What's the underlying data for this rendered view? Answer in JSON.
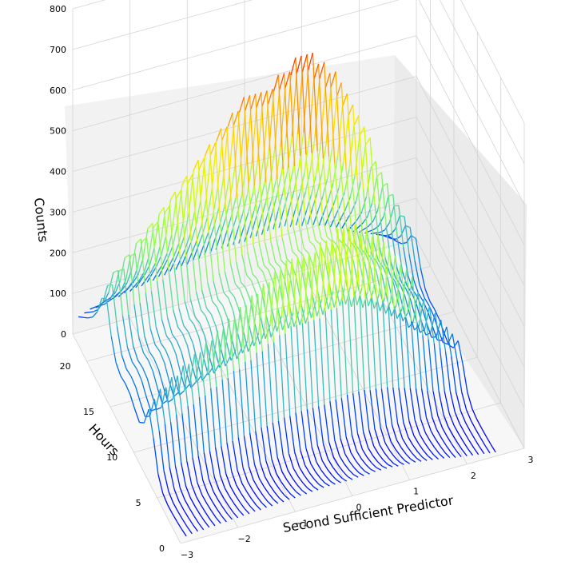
{
  "chart_data": {
    "type": "line",
    "title": "",
    "xlabel": "Second Sufficient Predictor",
    "ylabel": "Hours",
    "zlabel": "Counts",
    "x_ticks": [
      "−3",
      "−2",
      "−1",
      "0",
      "1",
      "2",
      "3"
    ],
    "y_ticks": [
      "0",
      "5",
      "10",
      "15",
      "20"
    ],
    "z_ticks": [
      "0",
      "100",
      "200",
      "300",
      "400",
      "500",
      "600",
      "700",
      "800"
    ],
    "xlim": [
      -3,
      3
    ],
    "ylim": [
      0,
      23
    ],
    "zlim": [
      0,
      800
    ],
    "colormap": "rainbow",
    "grid": true,
    "projection": "3d",
    "profile": {
      "description": "Counts vs Hours per curve",
      "hours": [
        0,
        1,
        2,
        3,
        4,
        5,
        6,
        7,
        8,
        9,
        10,
        11,
        12,
        13,
        14,
        15,
        16,
        17,
        18,
        19,
        20,
        21,
        22,
        23
      ],
      "counts": [
        40,
        25,
        15,
        8,
        5,
        20,
        90,
        280,
        420,
        260,
        200,
        230,
        270,
        280,
        270,
        300,
        420,
        620,
        560,
        400,
        300,
        230,
        170,
        110
      ]
    },
    "series_x_positions": [
      -2.9,
      -2.8,
      -2.7,
      -2.6,
      -2.5,
      -2.4,
      -2.3,
      -2.2,
      -2.1,
      -2.0,
      -1.9,
      -1.8,
      -1.7,
      -1.6,
      -1.5,
      -1.4,
      -1.3,
      -1.2,
      -1.1,
      -1.0,
      -0.9,
      -0.8,
      -0.7,
      -0.6,
      -0.5,
      -0.4,
      -0.3,
      -0.2,
      -0.1,
      0.0,
      0.1,
      0.2,
      0.3,
      0.4,
      0.5,
      0.6,
      0.7,
      0.8,
      0.9,
      1.0,
      1.1,
      1.2,
      1.3,
      1.4,
      1.5,
      1.6,
      1.7,
      1.8,
      1.9,
      2.0,
      2.1,
      2.2,
      2.3,
      2.4,
      2.5
    ],
    "series_amplitude": [
      0.35,
      0.4,
      0.45,
      0.45,
      0.5,
      0.5,
      0.55,
      0.55,
      0.6,
      0.6,
      0.65,
      0.65,
      0.7,
      0.7,
      0.75,
      0.75,
      0.8,
      0.8,
      0.85,
      0.85,
      0.9,
      0.9,
      0.95,
      0.95,
      1.0,
      1.0,
      1.0,
      1.0,
      1.0,
      1.0,
      1.05,
      1.05,
      1.05,
      1.1,
      1.1,
      1.1,
      1.1,
      1.05,
      1.05,
      1.0,
      1.0,
      0.95,
      0.9,
      0.85,
      0.8,
      0.75,
      0.7,
      0.6,
      0.55,
      0.5,
      0.45,
      0.4,
      0.35,
      0.3,
      0.25
    ]
  }
}
